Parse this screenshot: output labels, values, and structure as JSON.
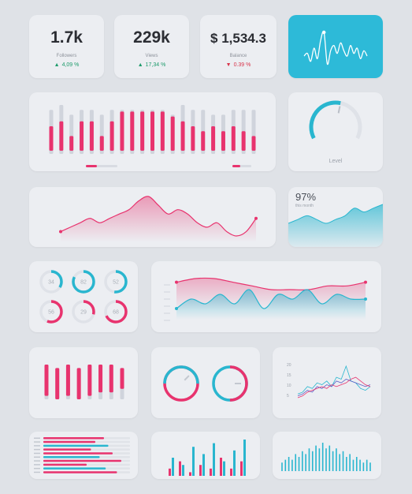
{
  "stats": [
    {
      "value": "1.7k",
      "label": "Followers",
      "change": "4,09 %",
      "direction": "up"
    },
    {
      "value": "229k",
      "label": "Views",
      "change": "17,34 %",
      "direction": "up"
    },
    {
      "value": "$ 1,534.3",
      "label": "Balance",
      "change": "0.39 %",
      "direction": "down"
    }
  ],
  "colors": {
    "pink": "#e8336e",
    "cyan": "#29b6cf",
    "grey": "#d0d4dc",
    "accent_tile": "#2dbad8"
  },
  "gauge": {
    "label": "Level",
    "fraction": 0.55
  },
  "percent_card": {
    "value": "97%",
    "subtitle": "this month"
  },
  "rings": [
    {
      "value": "34",
      "fraction": 0.34,
      "color": "cyan"
    },
    {
      "value": "82",
      "fraction": 0.82,
      "color": "cyan"
    },
    {
      "value": "52",
      "fraction": 0.52,
      "color": "cyan"
    },
    {
      "value": "56",
      "fraction": 0.56,
      "color": "pink"
    },
    {
      "value": "29",
      "fraction": 0.29,
      "color": "pink"
    },
    {
      "value": "68",
      "fraction": 0.68,
      "color": "pink"
    }
  ],
  "gauges_pair": [
    {
      "fraction": 0.5,
      "color": "cyan"
    },
    {
      "fraction": 0.5,
      "color": "pink"
    }
  ],
  "chart_data": [
    {
      "type": "line",
      "id": "pulse-tile",
      "y": [
        0,
        1,
        -2,
        3,
        -1,
        6,
        9,
        -3,
        2,
        4,
        1,
        5,
        2,
        0,
        4,
        1,
        3,
        -1,
        2,
        0
      ]
    },
    {
      "type": "bar",
      "id": "main-bars",
      "scale": [
        0,
        10
      ],
      "series": [
        {
          "name": "",
          "values": [
            5,
            6,
            3,
            6,
            6,
            3,
            6,
            8,
            8,
            8,
            8,
            8,
            7,
            6,
            5,
            4,
            5,
            4,
            5,
            4,
            3
          ]
        },
        {
          "name": "",
          "values": [
            9,
            10,
            8,
            9,
            9,
            8,
            9,
            9,
            9,
            9,
            9,
            9,
            8,
            10,
            9,
            9,
            8,
            8,
            9,
            9,
            9
          ]
        }
      ]
    },
    {
      "type": "area",
      "id": "pink-wave",
      "y": [
        2,
        3,
        4,
        5,
        4,
        5,
        6,
        7,
        9,
        10,
        8,
        6,
        7,
        6,
        4,
        3,
        4,
        2,
        1,
        2,
        5
      ]
    },
    {
      "type": "area",
      "id": "cyan-area",
      "y": [
        3,
        4,
        5,
        4,
        3,
        4,
        5,
        7,
        6,
        7,
        8
      ]
    },
    {
      "type": "area",
      "id": "dual-wave",
      "series": [
        {
          "name": "",
          "values": [
            7,
            8,
            8,
            7,
            6,
            5,
            5,
            5,
            6,
            6,
            7
          ]
        },
        {
          "name": "",
          "values": [
            2,
            4,
            3,
            5,
            3,
            6,
            2,
            5,
            4,
            6,
            3,
            5,
            4,
            4
          ]
        }
      ]
    },
    {
      "type": "bar",
      "id": "mid-bars",
      "scale": [
        0,
        10
      ],
      "series": [
        {
          "name": "",
          "values": [
            9,
            9,
            9,
            9,
            9,
            8,
            8,
            6
          ]
        },
        {
          "name": "",
          "values": [
            10,
            9,
            10,
            9,
            10,
            10,
            10,
            9
          ]
        }
      ]
    },
    {
      "type": "line",
      "id": "multi-line",
      "y_ticks": [
        "20",
        "15",
        "10",
        "5"
      ],
      "series": [
        {
          "name": "",
          "values": [
            5,
            6,
            9,
            8,
            11,
            10,
            12,
            9,
            14,
            13,
            20,
            12,
            11,
            8,
            7,
            9
          ]
        },
        {
          "name": "",
          "values": [
            4,
            5,
            7,
            6,
            9,
            8,
            10,
            9,
            12,
            11,
            13,
            12,
            11,
            10,
            9,
            10
          ]
        },
        {
          "name": "",
          "values": [
            3,
            4,
            6,
            7,
            8,
            9,
            8,
            10,
            9,
            10,
            11,
            13,
            14,
            12,
            10,
            9
          ]
        }
      ]
    },
    {
      "type": "bar",
      "id": "hbars",
      "orientation": "horizontal",
      "series": [
        {
          "name": "",
          "values": [
            70,
            60,
            75,
            55,
            80,
            65,
            90,
            50,
            72,
            85
          ]
        },
        {
          "name": "",
          "values": [
            40,
            35,
            48,
            30,
            55,
            38,
            60,
            33,
            45,
            58
          ]
        }
      ]
    },
    {
      "type": "bar",
      "id": "col-bars",
      "series": [
        {
          "name": "",
          "values": [
            2,
            4,
            1,
            3,
            2,
            5,
            2,
            4
          ]
        },
        {
          "name": "",
          "values": [
            5,
            3,
            8,
            6,
            9,
            4,
            7,
            10
          ]
        }
      ]
    },
    {
      "type": "bar",
      "id": "spike-bars",
      "values": [
        3,
        4,
        5,
        4,
        6,
        5,
        7,
        6,
        8,
        7,
        9,
        8,
        10,
        8,
        9,
        7,
        8,
        6,
        7,
        5,
        6,
        4,
        5,
        4,
        3,
        4,
        3
      ]
    }
  ]
}
